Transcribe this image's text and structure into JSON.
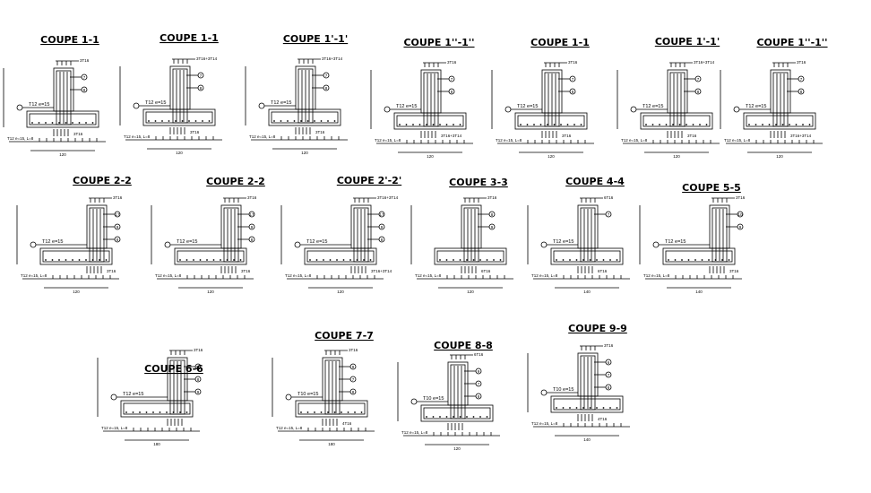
{
  "sections": [
    {
      "id": "s1",
      "title": "COUPE 1-1",
      "type": "T",
      "bot": "T12 e=15, L=8",
      "top": "3T16",
      "tag": "T12 e=15",
      "side": "3T16",
      "dim": "120",
      "circ": [
        "7",
        "8"
      ]
    },
    {
      "id": "s2",
      "title": "COUPE 1-1",
      "type": "T",
      "bot": "T12 e=15, L=8",
      "top": "3T16+3T14",
      "tag": "T12 e=15",
      "side": "3T16",
      "dim": "120",
      "circ": [
        "7",
        "8"
      ]
    },
    {
      "id": "s3",
      "title": "COUPE 1'-1'",
      "type": "T",
      "bot": "T12 e=15, L=8",
      "top": "3T16+3T14",
      "tag": "T12 e=15",
      "side": "3T16",
      "dim": "120",
      "circ": [
        "7",
        "8"
      ]
    },
    {
      "id": "s4",
      "title": "COUPE 1''-1''",
      "type": "T",
      "bot": "T12 e=15, L=8",
      "top": "3T16",
      "tag": "T12 e=15",
      "side": "3T16+3T14",
      "dim": "120",
      "circ": [
        "7",
        "8"
      ]
    },
    {
      "id": "s5",
      "title": "COUPE 1-1",
      "type": "T",
      "bot": "T12 e=15, L=8",
      "top": "3T16",
      "tag": "T12 e=15",
      "side": "3T16",
      "dim": "120",
      "circ": [
        "7",
        "8"
      ]
    },
    {
      "id": "s6",
      "title": "COUPE 1'-1'",
      "type": "T",
      "bot": "T12 e=15, L=8",
      "top": "3T16+3T14",
      "tag": "T12 e=15",
      "side": "3T16",
      "dim": "120",
      "circ": [
        "7",
        "8"
      ]
    },
    {
      "id": "s7",
      "title": "COUPE 1''-1''",
      "type": "T",
      "bot": "T12 e=15, L=8",
      "top": "3T16",
      "tag": "T12 e=15",
      "side": "3T16+3T14",
      "dim": "120",
      "circ": [
        "7",
        "8"
      ]
    },
    {
      "id": "s8",
      "title": "COUPE 2-2",
      "type": "L",
      "bot": "T12 e=15, L=8",
      "top": "3T16",
      "tag": "T12 e=15",
      "side": "3T16",
      "dim": "120",
      "circ": [
        "17",
        "9",
        "8"
      ]
    },
    {
      "id": "s9",
      "title": "COUPE 2-2",
      "type": "L",
      "bot": "T12 e=15, L=8",
      "top": "3T16",
      "tag": "T12 e=15",
      "side": "3T16",
      "dim": "120",
      "circ": [
        "17",
        "9",
        "8"
      ]
    },
    {
      "id": "s10",
      "title": "COUPE 2'-2'",
      "type": "L",
      "bot": "T12 e=15, L=8",
      "top": "3T16+3T14",
      "tag": "T12 e=15",
      "side": "3T16+3T14",
      "dim": "120",
      "circ": [
        "17",
        "9",
        "8"
      ]
    },
    {
      "id": "s11",
      "title": "COUPE 3-3",
      "type": "T",
      "bot": "T12 e=15, L=8",
      "top": "3T16",
      "tag": "",
      "side": "6T16",
      "dim": "120",
      "circ": [
        "8",
        "9"
      ]
    },
    {
      "id": "s12",
      "title": "COUPE 4-4",
      "type": "T",
      "bot": "T12 e=15, L=8",
      "top": "6T16",
      "tag": "T12 e=15",
      "side": "6T16",
      "dim": "140",
      "circ": [
        "7"
      ]
    },
    {
      "id": "s13",
      "title": "COUPE 5-5",
      "type": "L",
      "bot": "T12 e=15, L=8",
      "top": "3T16",
      "tag": "T12 e=15",
      "side": "3T16",
      "dim": "140",
      "circ": [
        "10",
        "9"
      ]
    },
    {
      "id": "s14",
      "title": "COUPE 6-6",
      "type": "L",
      "bot": "T12 e=15, L=8",
      "top": "3T16",
      "tag": "T12 e=15",
      "side": "",
      "dim": "180",
      "circ": [
        "20",
        "8",
        "9"
      ]
    },
    {
      "id": "s15",
      "title": "COUPE 7-7",
      "type": "T",
      "bot": "T12 e=15, L=8",
      "top": "3T16",
      "tag": "T10 e=15",
      "side": "4T16",
      "dim": "180",
      "circ": [
        "9",
        "7",
        "8"
      ]
    },
    {
      "id": "s16",
      "title": "COUPE 8-8",
      "type": "T",
      "bot": "T12 e=15, L=8",
      "top": "6T16",
      "tag": "T10 e=15",
      "side": "",
      "dim": "120",
      "circ": [
        "9",
        "7",
        "8"
      ]
    },
    {
      "id": "s17",
      "title": "COUPE 9-9",
      "type": "T",
      "bot": "T12 e=15, L=8",
      "top": "3T16",
      "tag": "T10 e=15",
      "side": "4T16",
      "dim": "140",
      "circ": [
        "6",
        "7",
        "8"
      ]
    }
  ]
}
